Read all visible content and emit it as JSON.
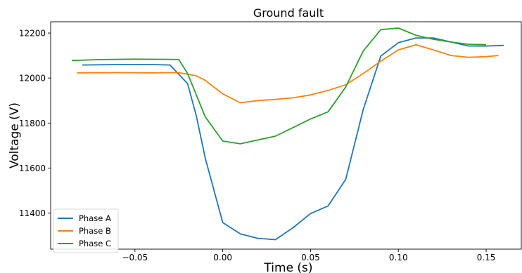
{
  "chart_data": {
    "type": "line",
    "title": "Ground fault",
    "xlabel": "Time (s)",
    "ylabel": "Voltage (V)",
    "xlim": [
      -0.098,
      0.17
    ],
    "ylim": [
      11240,
      12250
    ],
    "xticks": [
      -0.05,
      0.0,
      0.05,
      0.1,
      0.15
    ],
    "xtick_labels": [
      "−0.05",
      "0.00",
      "0.05",
      "0.10",
      "0.15"
    ],
    "yticks": [
      11400,
      11600,
      11800,
      12000,
      12200
    ],
    "ytick_labels": [
      "11400",
      "11600",
      "11800",
      "12000",
      "12200"
    ],
    "grid": false,
    "legend_position": "lower-left",
    "series": [
      {
        "name": "Phase A",
        "color": "#1f77b4",
        "x": [
          -0.08,
          -0.06,
          -0.04,
          -0.03,
          -0.02,
          -0.015,
          -0.01,
          0.0,
          0.01,
          0.02,
          0.03,
          0.04,
          0.05,
          0.06,
          0.07,
          0.08,
          0.09,
          0.1,
          0.11,
          0.12,
          0.13,
          0.14,
          0.15,
          0.16
        ],
        "y": [
          12058,
          12060,
          12060,
          12058,
          11975,
          11830,
          11645,
          11358,
          11308,
          11288,
          11282,
          11335,
          11398,
          11432,
          11550,
          11860,
          12098,
          12157,
          12178,
          12178,
          12160,
          12142,
          12142,
          12145
        ]
      },
      {
        "name": "Phase B",
        "color": "#ff7f0e",
        "x": [
          -0.083,
          -0.06,
          -0.04,
          -0.03,
          -0.025,
          -0.015,
          -0.01,
          0.0,
          0.01,
          0.02,
          0.03,
          0.04,
          0.05,
          0.06,
          0.07,
          0.08,
          0.09,
          0.1,
          0.11,
          0.12,
          0.13,
          0.14,
          0.15,
          0.157
        ],
        "y": [
          12023,
          12024,
          12023,
          12024,
          12024,
          12010,
          11990,
          11930,
          11890,
          11900,
          11905,
          11912,
          11925,
          11945,
          11970,
          12020,
          12075,
          12125,
          12148,
          12125,
          12100,
          12092,
          12095,
          12100
        ]
      },
      {
        "name": "Phase C",
        "color": "#2ca02c",
        "x": [
          -0.086,
          -0.07,
          -0.05,
          -0.03,
          -0.025,
          -0.02,
          -0.01,
          0.0,
          0.01,
          0.02,
          0.03,
          0.04,
          0.05,
          0.06,
          0.07,
          0.08,
          0.09,
          0.1,
          0.11,
          0.12,
          0.13,
          0.14,
          0.15
        ],
        "y": [
          12078,
          12082,
          12084,
          12083,
          12082,
          12020,
          11828,
          11720,
          11708,
          11725,
          11742,
          11780,
          11818,
          11850,
          11960,
          12120,
          12215,
          12222,
          12190,
          12172,
          12160,
          12150,
          12148
        ]
      }
    ]
  }
}
